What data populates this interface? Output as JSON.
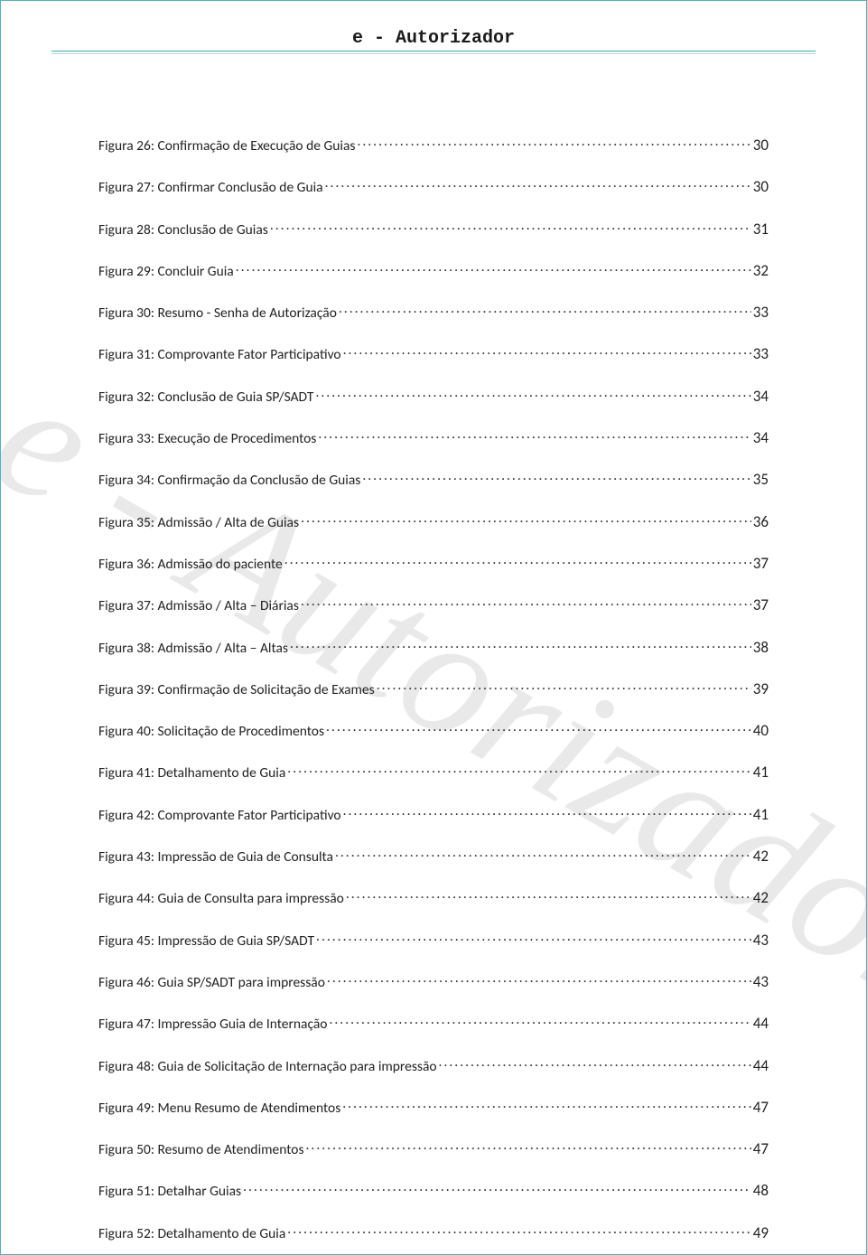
{
  "header": {
    "title": "e - Autorizador"
  },
  "watermark": "e - Autorizador",
  "toc": [
    {
      "label": "Figura 26: Confirmação de Execução de Guias",
      "page": "30"
    },
    {
      "label": "Figura 27: Confirmar Conclusão de Guia",
      "page": "30"
    },
    {
      "label": "Figura 28: Conclusão de Guias",
      "page": "31"
    },
    {
      "label": "Figura 29: Concluir Guia",
      "page": "32"
    },
    {
      "label": "Figura 30: Resumo - Senha de Autorização",
      "page": "33"
    },
    {
      "label": "Figura 31: Comprovante Fator Participativo",
      "page": "33"
    },
    {
      "label": "Figura 32: Conclusão de Guia SP/SADT",
      "page": "34"
    },
    {
      "label": "Figura 33: Execução de Procedimentos",
      "page": "34"
    },
    {
      "label": "Figura 34: Confirmação da Conclusão de Guias",
      "page": "35"
    },
    {
      "label": "Figura 35: Admissão / Alta de Guias",
      "page": "36"
    },
    {
      "label": "Figura 36: Admissão do paciente",
      "page": "37"
    },
    {
      "label": "Figura 37: Admissão / Alta – Diárias",
      "page": "37"
    },
    {
      "label": "Figura 38: Admissão / Alta – Altas",
      "page": "38"
    },
    {
      "label": "Figura 39: Confirmação de Solicitação de Exames",
      "page": "39"
    },
    {
      "label": "Figura 40: Solicitação de Procedimentos",
      "page": "40"
    },
    {
      "label": "Figura 41: Detalhamento de Guia",
      "page": "41"
    },
    {
      "label": "Figura 42: Comprovante Fator Participativo",
      "page": "41"
    },
    {
      "label": "Figura 43: Impressão de Guia de Consulta",
      "page": "42"
    },
    {
      "label": "Figura 44: Guia de Consulta para impressão",
      "page": "42"
    },
    {
      "label": "Figura 45: Impressão de Guia SP/SADT",
      "page": "43"
    },
    {
      "label": "Figura 46: Guia SP/SADT para impressão",
      "page": "43"
    },
    {
      "label": "Figura 47: Impressão Guia de Internação",
      "page": "44"
    },
    {
      "label": "Figura 48: Guia de Solicitação de Internação para impressão",
      "page": "44"
    },
    {
      "label": "Figura 49: Menu Resumo de Atendimentos",
      "page": "47"
    },
    {
      "label": "Figura 50: Resumo de Atendimentos",
      "page": "47"
    },
    {
      "label": "Figura 51: Detalhar Guias",
      "page": "48"
    },
    {
      "label": "Figura 52: Detalhamento de Guia",
      "page": "49"
    }
  ]
}
